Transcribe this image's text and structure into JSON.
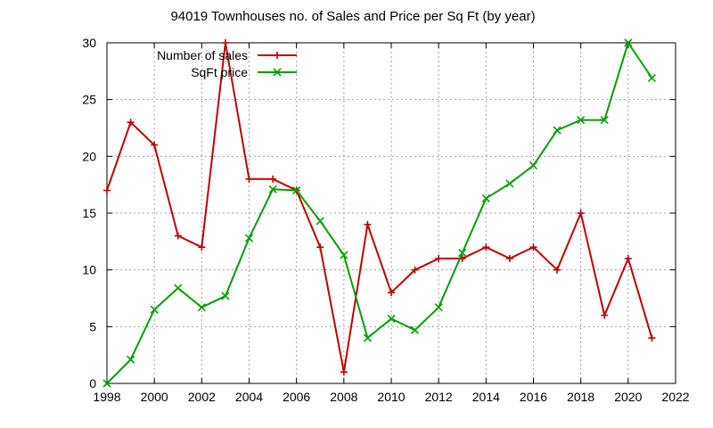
{
  "chart_data": {
    "type": "line",
    "title": "94019 Townhouses no. of Sales and Price per Sq Ft (by year)",
    "xlabel": "",
    "ylabel": "",
    "xlim": [
      1998,
      2022
    ],
    "ylim": [
      0,
      30
    ],
    "xticks": [
      1998,
      2000,
      2002,
      2004,
      2006,
      2008,
      2010,
      2012,
      2014,
      2016,
      2018,
      2020,
      2022
    ],
    "yticks": [
      0,
      5,
      10,
      15,
      20,
      25,
      30
    ],
    "grid": true,
    "legend_position": "top-left",
    "x": [
      1998,
      1999,
      2000,
      2001,
      2002,
      2003,
      2004,
      2005,
      2006,
      2007,
      2008,
      2009,
      2010,
      2011,
      2012,
      2013,
      2014,
      2015,
      2016,
      2017,
      2018,
      2019,
      2020,
      2021
    ],
    "series": [
      {
        "name": "Number of sales",
        "color": "#c00000",
        "marker": "plus",
        "values": [
          17,
          23,
          21,
          13,
          12,
          30,
          18,
          18,
          17,
          12,
          1,
          14,
          8,
          10,
          11,
          11,
          12,
          11,
          12,
          10,
          15,
          6,
          11,
          4
        ]
      },
      {
        "name": "SqFt price",
        "color": "#00a000",
        "marker": "cross",
        "values": [
          0,
          2.1,
          6.5,
          8.4,
          6.7,
          7.7,
          12.8,
          17.1,
          17,
          14.3,
          11.3,
          4,
          5.7,
          4.7,
          6.7,
          11.5,
          16.3,
          17.6,
          19.2,
          22.3,
          23.2,
          23.2,
          30,
          26.9
        ]
      }
    ]
  }
}
